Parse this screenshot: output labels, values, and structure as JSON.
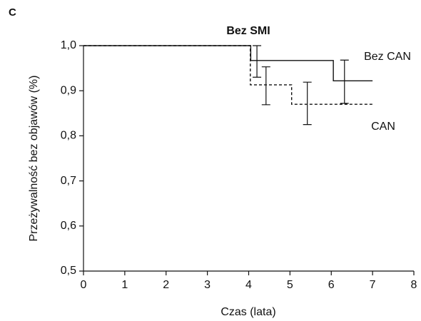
{
  "panel_label": "C",
  "chart_data": {
    "type": "step",
    "title": "Bez SMI",
    "xlabel": "Czas (lata)",
    "ylabel": "Przeżywalność bez objawów (%)",
    "xlim": [
      0,
      8
    ],
    "xticks": [
      0,
      1,
      2,
      3,
      4,
      5,
      6,
      7,
      8
    ],
    "ylim": [
      0.5,
      1.0
    ],
    "yticks": [
      {
        "value": 0.5,
        "label": "0,5"
      },
      {
        "value": 0.6,
        "label": "0,6"
      },
      {
        "value": 0.7,
        "label": "0,7"
      },
      {
        "value": 0.8,
        "label": "0,8"
      },
      {
        "value": 0.9,
        "label": "0,9"
      },
      {
        "value": 1.0,
        "label": "1,0"
      }
    ],
    "series": [
      {
        "name": "Bez CAN",
        "color": "#111111",
        "dash": false,
        "x": [
          0,
          4.05,
          4.05,
          6.05,
          6.05,
          7
        ],
        "values": [
          1.0,
          1.0,
          0.967,
          0.967,
          0.922,
          0.922
        ],
        "error_bars": {
          "x": [
            4.2,
            6.32
          ],
          "values": [
            0.965,
            0.92
          ],
          "errors": [
            0.035,
            0.048
          ]
        }
      },
      {
        "name": "CAN",
        "color": "#111111",
        "dash": true,
        "x": [
          0,
          4.04,
          4.04,
          5.04,
          5.04,
          7
        ],
        "values": [
          1.0,
          1.0,
          0.913,
          0.913,
          0.87,
          0.87
        ],
        "error_bars": {
          "x": [
            4.42,
            5.42
          ],
          "values": [
            0.911,
            0.872
          ],
          "errors": [
            0.042,
            0.047
          ]
        }
      }
    ]
  }
}
